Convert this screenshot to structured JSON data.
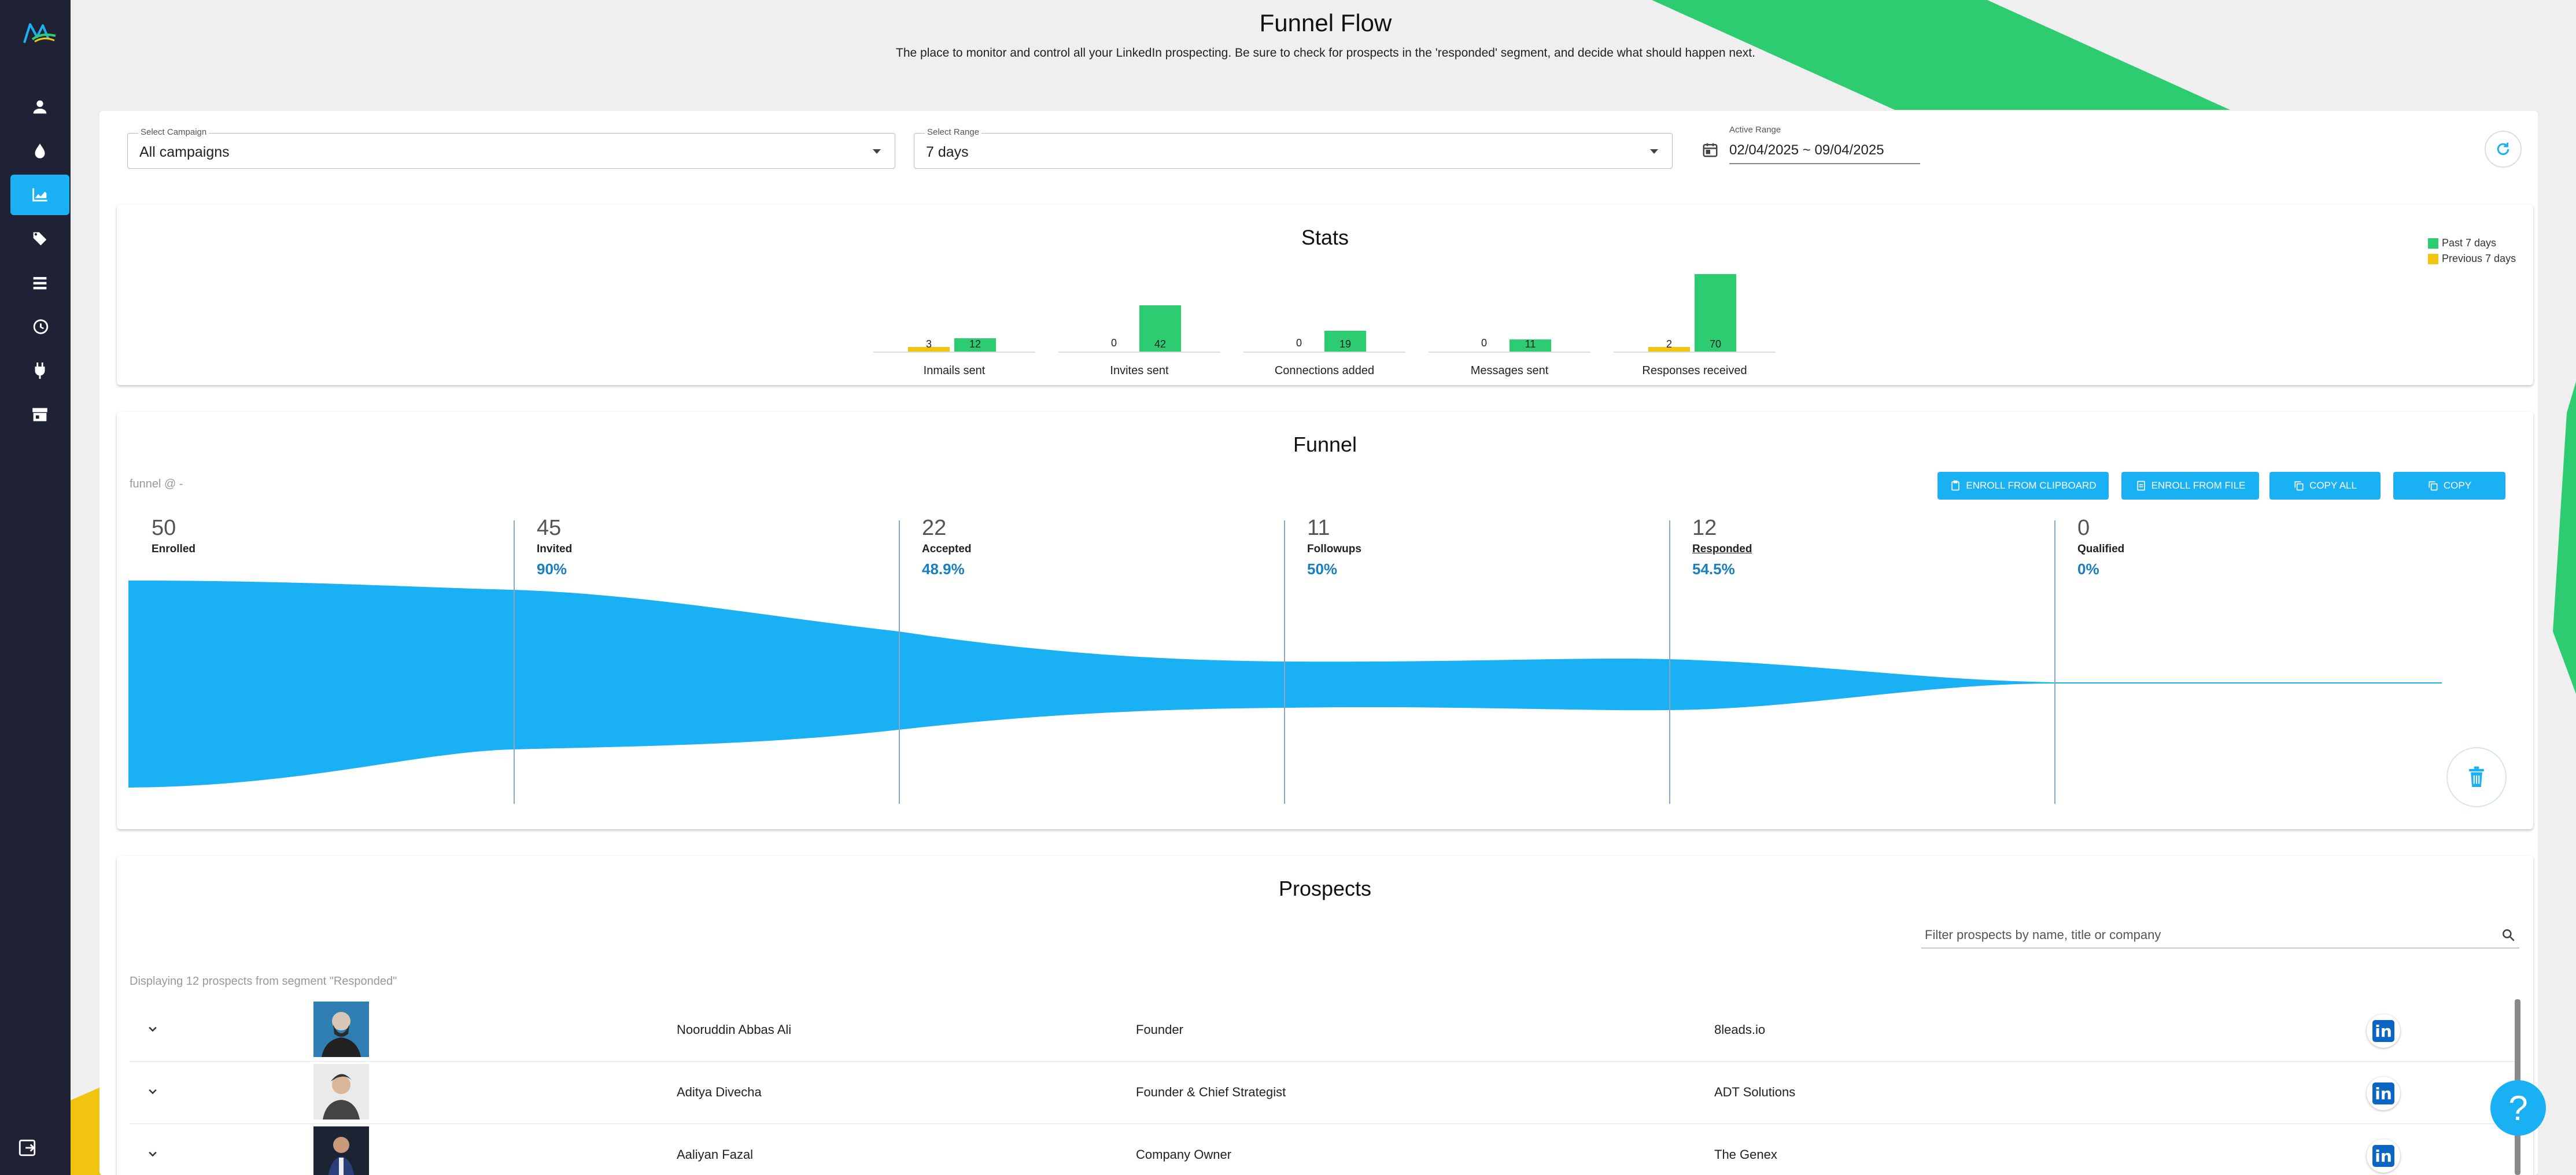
{
  "header": {
    "title": "Funnel Flow",
    "subtitle": "The place to monitor and control all your LinkedIn prospecting. Be sure to check for prospects in the 'responded' segment, and decide what should happen next."
  },
  "sidebar": {
    "items": [
      {
        "icon": "person-icon"
      },
      {
        "icon": "drop-icon"
      },
      {
        "icon": "chart-icon",
        "active": true
      },
      {
        "icon": "tags-icon"
      },
      {
        "icon": "list-icon"
      },
      {
        "icon": "history-icon"
      },
      {
        "icon": "plug-icon"
      },
      {
        "icon": "storefront-icon"
      }
    ],
    "logout_icon": "logout-icon"
  },
  "filters": {
    "campaign_label": "Select Campaign",
    "campaign_value": "All campaigns",
    "range_label": "Select Range",
    "range_value": "7 days",
    "active_range_label": "Active Range",
    "active_range_value": "02/04/2025 ~ 09/04/2025"
  },
  "stats": {
    "title": "Stats",
    "legend": [
      {
        "label": "Past 7 days",
        "color": "#2ecc71"
      },
      {
        "label": "Previous 7 days",
        "color": "#f1c40f"
      }
    ]
  },
  "chart_data": {
    "type": "bar",
    "title": "Stats",
    "categories": [
      "Inmails sent",
      "Invites sent",
      "Connections added",
      "Messages sent",
      "Responses received"
    ],
    "series": [
      {
        "name": "Previous 7 days",
        "values": [
          3,
          0,
          0,
          0,
          2
        ]
      },
      {
        "name": "Past 7 days",
        "values": [
          12,
          42,
          19,
          11,
          70
        ]
      }
    ],
    "colors": {
      "Past 7 days": "#2ecc71",
      "Previous 7 days": "#f1c40f"
    }
  },
  "funnel": {
    "title": "Funnel",
    "small_label": "funnel @ -",
    "buttons": [
      "ENROLL FROM CLIPBOARD",
      "ENROLL FROM FILE",
      "COPY ALL",
      "COPY"
    ],
    "stages": [
      {
        "count": "50",
        "name": "Enrolled",
        "pct": ""
      },
      {
        "count": "45",
        "name": "Invited",
        "pct": "90%"
      },
      {
        "count": "22",
        "name": "Accepted",
        "pct": "48.9%"
      },
      {
        "count": "11",
        "name": "Followups",
        "pct": "50%"
      },
      {
        "count": "12",
        "name": "Responded",
        "pct": "54.5%"
      },
      {
        "count": "0",
        "name": "Qualified",
        "pct": "0%"
      }
    ],
    "fill_color": "#1ab0f4"
  },
  "prospects": {
    "title": "Prospects",
    "search_placeholder": "Filter prospects by name, title or company",
    "displaying": "Displaying 12 prospects from segment \"Responded\"",
    "rows": [
      {
        "name": "Nooruddin Abbas Ali",
        "title": "Founder",
        "company": "8leads.io"
      },
      {
        "name": "Aditya Divecha",
        "title": "Founder & Chief Strategist",
        "company": "ADT Solutions"
      },
      {
        "name": "Aaliyan Fazal",
        "title": "Company Owner",
        "company": "The Genex"
      }
    ]
  },
  "help_label": "?"
}
